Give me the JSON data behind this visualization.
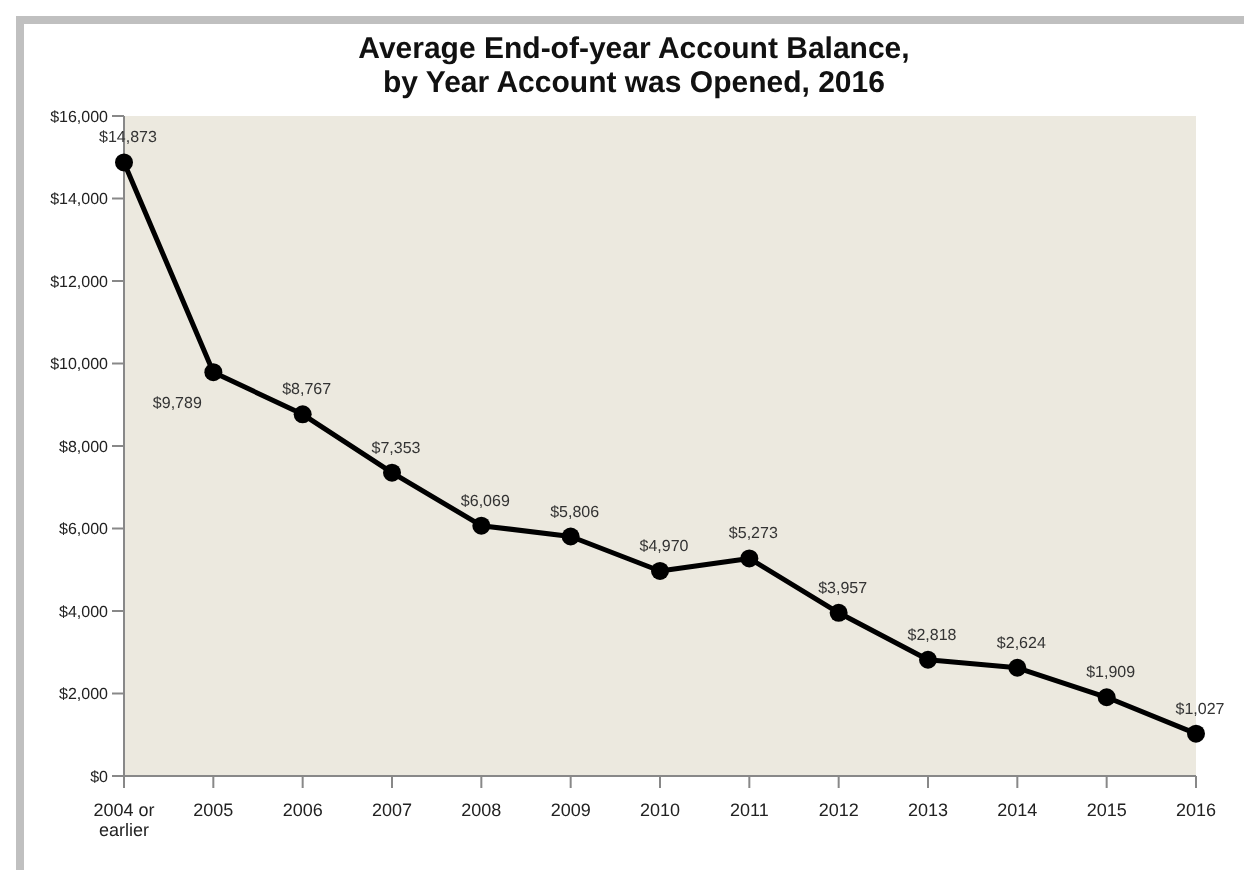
{
  "chart_data": {
    "type": "line",
    "title": "Average End-of-year Account Balance,\nby Year Account was Opened, 2016",
    "categories": [
      "2004 or earlier",
      "2005",
      "2006",
      "2007",
      "2008",
      "2009",
      "2010",
      "2011",
      "2012",
      "2013",
      "2014",
      "2015",
      "2016"
    ],
    "series": [
      {
        "color": "#000000",
        "values": [
          14873,
          9789,
          8767,
          7353,
          6069,
          5806,
          4970,
          5273,
          3957,
          2818,
          2624,
          1909,
          1027
        ],
        "value_labels": [
          "$14,873",
          "$9,789",
          "$8,767",
          "$7,353",
          "$6,069",
          "$5,806",
          "$4,970",
          "$5,273",
          "$3,957",
          "$2,818",
          "$2,624",
          "$1,909",
          "$1,027"
        ]
      }
    ],
    "ylim": [
      0,
      16000
    ],
    "yticks": [
      {
        "value": 0,
        "label": "$0"
      },
      {
        "value": 2000,
        "label": "$2,000"
      },
      {
        "value": 4000,
        "label": "$4,000"
      },
      {
        "value": 6000,
        "label": "$6,000"
      },
      {
        "value": 8000,
        "label": "$8,000"
      },
      {
        "value": 10000,
        "label": "$10,000"
      },
      {
        "value": 12000,
        "label": "$12,000"
      },
      {
        "value": 14000,
        "label": "$14,000"
      },
      {
        "value": 16000,
        "label": "$16,000"
      }
    ],
    "grid": false,
    "legend": false,
    "marker": "circle",
    "line_style": "solid"
  }
}
